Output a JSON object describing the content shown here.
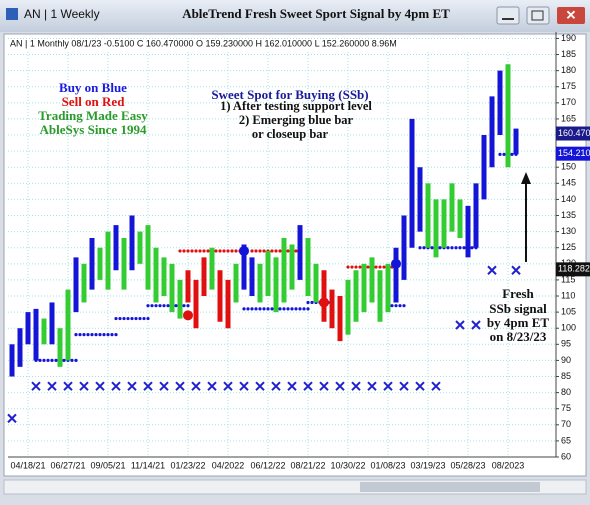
{
  "chart_data": {
    "type": "ohlc",
    "window_title": "AN | 1 Weekly",
    "title": "AbleTrend Fresh Sweet Sport Signal by 4pm ET",
    "info_line": "AN | 1 Monthly 08/1/23 -0.5100 C 160.470000 O 159.230000 H 162.010000 L 152.260000 8.96M",
    "annotations": [
      {
        "text": "Buy on Blue",
        "color": "#1a1ae0"
      },
      {
        "text": "Sell on Red",
        "color": "#e01010"
      },
      {
        "text": "Trading Made Easy",
        "color": "#2a9a2a"
      },
      {
        "text": "AbleSys Since 1994",
        "color": "#2a9a2a"
      },
      {
        "text": "Sweet Spot for Buying (SSb)",
        "color": "#1a1a9a"
      },
      {
        "text": "1) After testing support level",
        "color": "#111111"
      },
      {
        "text": "2) Emerging blue bar",
        "color": "#111111"
      },
      {
        "text": "or closeup bar",
        "color": "#111111"
      },
      {
        "text": "Fresh",
        "color": "#111111"
      },
      {
        "text": "SSb signal",
        "color": "#111111"
      },
      {
        "text": "by 4pm ET",
        "color": "#111111"
      },
      {
        "text": "on 8/23/23",
        "color": "#111111"
      }
    ],
    "categories": [
      null,
      null,
      "04/18/21",
      null,
      null,
      null,
      null,
      "06/27/21",
      null,
      null,
      null,
      null,
      "09/05/21",
      null,
      null,
      null,
      null,
      "11/14/21",
      null,
      null,
      null,
      null,
      "01/23/22",
      null,
      null,
      null,
      null,
      "04/2022",
      null,
      null,
      null,
      null,
      "06/12/22",
      null,
      null,
      null,
      null,
      "08/21/22",
      null,
      null,
      null,
      null,
      "10/30/22",
      null,
      null,
      null,
      null,
      "01/08/23",
      null,
      null,
      null,
      null,
      "03/19/23",
      null,
      null,
      null,
      null,
      "05/28/23",
      null,
      null,
      null,
      null,
      "08/2023",
      null
    ],
    "high": [
      95,
      100,
      105,
      106,
      103,
      108,
      100,
      112,
      122,
      120,
      128,
      125,
      130,
      132,
      128,
      135,
      130,
      132,
      125,
      122,
      120,
      115,
      118,
      115,
      122,
      125,
      118,
      115,
      120,
      126,
      122,
      120,
      124,
      122,
      128,
      126,
      132,
      128,
      120,
      118,
      112,
      110,
      115,
      118,
      120,
      122,
      118,
      120,
      125,
      135,
      165,
      150,
      145,
      140,
      140,
      145,
      140,
      138,
      145,
      160,
      172,
      180,
      182,
      162
    ],
    "low": [
      85,
      88,
      95,
      90,
      95,
      95,
      88,
      90,
      105,
      108,
      112,
      115,
      112,
      118,
      112,
      118,
      120,
      112,
      108,
      110,
      105,
      103,
      108,
      100,
      110,
      112,
      102,
      100,
      108,
      112,
      110,
      108,
      110,
      105,
      108,
      112,
      115,
      110,
      108,
      102,
      100,
      96,
      98,
      102,
      105,
      108,
      102,
      105,
      108,
      115,
      125,
      130,
      125,
      122,
      125,
      130,
      128,
      122,
      125,
      140,
      150,
      160,
      150,
      154
    ],
    "bar_colors": [
      "#1515d8",
      "#1515d8",
      "#1515d8",
      "#1515d8",
      "#33cc33",
      "#1515d8",
      "#33cc33",
      "#33cc33",
      "#1515d8",
      "#33cc33",
      "#1515d8",
      "#33cc33",
      "#33cc33",
      "#1515d8",
      "#33cc33",
      "#1515d8",
      "#33cc33",
      "#33cc33",
      "#33cc33",
      "#33cc33",
      "#33cc33",
      "#33cc33",
      "#e01010",
      "#e01010",
      "#e01010",
      "#33cc33",
      "#e01010",
      "#e01010",
      "#33cc33",
      "#1515d8",
      "#1515d8",
      "#33cc33",
      "#33cc33",
      "#33cc33",
      "#33cc33",
      "#33cc33",
      "#1515d8",
      "#33cc33",
      "#33cc33",
      "#e01010",
      "#e01010",
      "#e01010",
      "#33cc33",
      "#33cc33",
      "#33cc33",
      "#33cc33",
      "#33cc33",
      "#33cc33",
      "#1515d8",
      "#1515d8",
      "#1515d8",
      "#1515d8",
      "#33cc33",
      "#33cc33",
      "#33cc33",
      "#33cc33",
      "#33cc33",
      "#1515d8",
      "#1515d8",
      "#1515d8",
      "#1515d8",
      "#1515d8",
      "#33cc33",
      "#1515d8"
    ],
    "levels": [
      {
        "start": 3,
        "end": 8,
        "value": 90,
        "color": "#1515d8"
      },
      {
        "start": 8,
        "end": 13,
        "value": 98,
        "color": "#1515d8"
      },
      {
        "start": 13,
        "end": 17,
        "value": 103,
        "color": "#1515d8"
      },
      {
        "start": 17,
        "end": 22,
        "value": 107,
        "color": "#1515d8"
      },
      {
        "start": 21,
        "end": 29,
        "value": 124,
        "color": "#e01010"
      },
      {
        "start": 29,
        "end": 37,
        "value": 106,
        "color": "#1515d8"
      },
      {
        "start": 30,
        "end": 36,
        "value": 124,
        "color": "#e01010"
      },
      {
        "start": 37,
        "end": 40,
        "value": 108,
        "color": "#1515d8"
      },
      {
        "start": 42,
        "end": 48,
        "value": 119,
        "color": "#e01010"
      },
      {
        "start": 47,
        "end": 49,
        "value": 107,
        "color": "#1515d8"
      },
      {
        "start": 51,
        "end": 58,
        "value": 125,
        "color": "#1515d8"
      },
      {
        "start": 61,
        "end": 63,
        "value": 154,
        "color": "#1515d8"
      }
    ],
    "dots": [
      {
        "index": 22,
        "value": 104,
        "color": "#e01010"
      },
      {
        "index": 29,
        "value": 124,
        "color": "#1515d8"
      },
      {
        "index": 39,
        "value": 108,
        "color": "#e01010"
      },
      {
        "index": 48,
        "value": 120,
        "color": "#1515d8"
      }
    ],
    "x_markers": {
      "index": [
        0,
        3,
        5,
        7,
        9,
        11,
        13,
        15,
        17,
        19,
        21,
        23,
        25,
        27,
        29,
        31,
        33,
        35,
        37,
        39,
        41,
        43,
        45,
        47,
        49,
        51,
        53,
        56,
        58,
        60,
        63
      ],
      "values": [
        72,
        82,
        82,
        82,
        82,
        82,
        82,
        82,
        82,
        82,
        82,
        82,
        82,
        82,
        82,
        82,
        82,
        82,
        82,
        82,
        82,
        82,
        82,
        82,
        82,
        82,
        82,
        101,
        101,
        118,
        118
      ]
    },
    "price_tags": [
      {
        "value": 160.47,
        "label": "160.470",
        "color": "#1a1a8a"
      },
      {
        "value": 154.21,
        "label": "154.210",
        "color": "#1515d8"
      },
      {
        "value": 118.282,
        "label": "118.282",
        "color": "#111111"
      }
    ],
    "ylim": [
      60,
      192
    ],
    "yticks": [
      60,
      65,
      70,
      75,
      80,
      85,
      90,
      95,
      100,
      105,
      110,
      115,
      120,
      125,
      130,
      135,
      140,
      145,
      150,
      155,
      160,
      165,
      170,
      175,
      180,
      185,
      190
    ],
    "grid": true
  }
}
